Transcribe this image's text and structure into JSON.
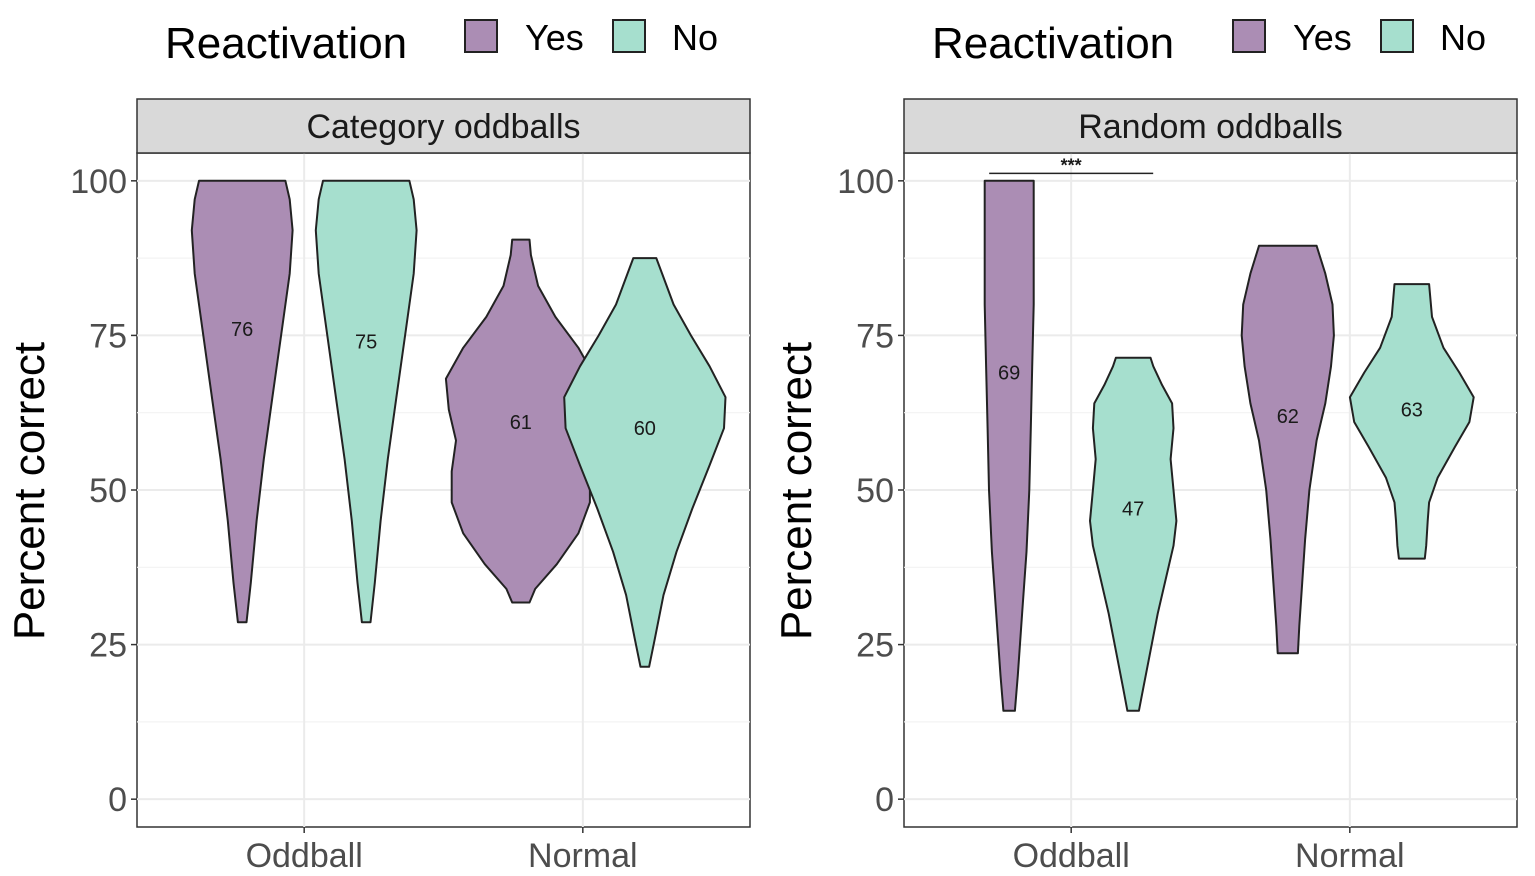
{
  "colors": {
    "yes": "#ab8db4",
    "no": "#a6dfce"
  },
  "legend": {
    "title": "Reactivation",
    "items": [
      {
        "label": "Yes",
        "key": "yes"
      },
      {
        "label": "No",
        "key": "no"
      }
    ]
  },
  "chart_data": [
    {
      "type": "violin",
      "title": "Category oddballs",
      "xlabel": "",
      "ylabel": "Percent correct",
      "ylim": [
        -4.5,
        104.5
      ],
      "yticks": [
        0,
        25,
        50,
        75,
        100
      ],
      "yticklabels": [
        "0",
        "25",
        "50",
        "75",
        "100"
      ],
      "categories": [
        "Oddball",
        "Normal"
      ],
      "significance": null,
      "violins": [
        {
          "category": "Oddball",
          "group": "yes",
          "label": "76",
          "label_y": 76,
          "profile": [
            [
              28.6,
              0.03
            ],
            [
              35,
              0.06
            ],
            [
              45,
              0.1
            ],
            [
              55,
              0.15
            ],
            [
              65,
              0.21
            ],
            [
              75,
              0.27
            ],
            [
              85,
              0.33
            ],
            [
              92,
              0.35
            ],
            [
              97,
              0.33
            ],
            [
              100,
              0.3
            ]
          ]
        },
        {
          "category": "Oddball",
          "group": "no",
          "label": "75",
          "label_y": 74,
          "profile": [
            [
              28.6,
              0.03
            ],
            [
              35,
              0.06
            ],
            [
              45,
              0.1
            ],
            [
              55,
              0.15
            ],
            [
              65,
              0.21
            ],
            [
              75,
              0.27
            ],
            [
              85,
              0.33
            ],
            [
              92,
              0.35
            ],
            [
              97,
              0.33
            ],
            [
              100,
              0.3
            ]
          ]
        },
        {
          "category": "Normal",
          "group": "yes",
          "label": "61",
          "label_y": 61,
          "profile": [
            [
              31.8,
              0.06
            ],
            [
              34,
              0.1
            ],
            [
              38,
              0.25
            ],
            [
              43,
              0.4
            ],
            [
              48,
              0.48
            ],
            [
              53,
              0.48
            ],
            [
              58,
              0.45
            ],
            [
              63,
              0.5
            ],
            [
              68,
              0.52
            ],
            [
              73,
              0.4
            ],
            [
              78,
              0.24
            ],
            [
              83,
              0.12
            ],
            [
              88,
              0.07
            ],
            [
              90.5,
              0.06
            ]
          ]
        },
        {
          "category": "Normal",
          "group": "no",
          "label": "60",
          "label_y": 60,
          "profile": [
            [
              21.4,
              0.03
            ],
            [
              26,
              0.07
            ],
            [
              33,
              0.13
            ],
            [
              40,
              0.22
            ],
            [
              47,
              0.33
            ],
            [
              54,
              0.45
            ],
            [
              60,
              0.55
            ],
            [
              65,
              0.56
            ],
            [
              70,
              0.45
            ],
            [
              75,
              0.32
            ],
            [
              80,
              0.2
            ],
            [
              85,
              0.12
            ],
            [
              87.5,
              0.08
            ]
          ]
        }
      ]
    },
    {
      "type": "violin",
      "title": "Random oddballs",
      "xlabel": "",
      "ylabel": "Percent correct",
      "ylim": [
        -4.5,
        104.5
      ],
      "yticks": [
        0,
        25,
        50,
        75,
        100
      ],
      "yticklabels": [
        "0",
        "25",
        "50",
        "75",
        "100"
      ],
      "categories": [
        "Oddball",
        "Normal"
      ],
      "significance": {
        "label": "***",
        "from": "Oddball-yes",
        "to": "Oddball-no",
        "y": 101.2
      },
      "violins": [
        {
          "category": "Oddball",
          "group": "yes",
          "label": "69",
          "label_y": 69,
          "profile": [
            [
              14.3,
              0.04
            ],
            [
              20,
              0.06
            ],
            [
              30,
              0.09
            ],
            [
              40,
              0.12
            ],
            [
              50,
              0.14
            ],
            [
              60,
              0.15
            ],
            [
              70,
              0.16
            ],
            [
              80,
              0.17
            ],
            [
              90,
              0.17
            ],
            [
              100,
              0.17
            ]
          ]
        },
        {
          "category": "Oddball",
          "group": "no",
          "label": "47",
          "label_y": 47,
          "profile": [
            [
              14.3,
              0.04
            ],
            [
              18,
              0.07
            ],
            [
              24,
              0.12
            ],
            [
              30,
              0.17
            ],
            [
              36,
              0.23
            ],
            [
              41,
              0.28
            ],
            [
              45,
              0.3
            ],
            [
              50,
              0.28
            ],
            [
              55,
              0.26
            ],
            [
              60,
              0.28
            ],
            [
              64,
              0.27
            ],
            [
              67,
              0.2
            ],
            [
              70,
              0.14
            ],
            [
              71.4,
              0.12
            ]
          ]
        },
        {
          "category": "Normal",
          "group": "yes",
          "label": "62",
          "label_y": 62,
          "profile": [
            [
              23.6,
              0.07
            ],
            [
              28,
              0.08
            ],
            [
              35,
              0.1
            ],
            [
              42,
              0.12
            ],
            [
              50,
              0.15
            ],
            [
              58,
              0.2
            ],
            [
              64,
              0.26
            ],
            [
              70,
              0.3
            ],
            [
              75,
              0.32
            ],
            [
              80,
              0.31
            ],
            [
              85,
              0.26
            ],
            [
              89.5,
              0.2
            ]
          ]
        },
        {
          "category": "Normal",
          "group": "no",
          "label": "63",
          "label_y": 63,
          "profile": [
            [
              38.9,
              0.09
            ],
            [
              41,
              0.1
            ],
            [
              45,
              0.11
            ],
            [
              48,
              0.12
            ],
            [
              52,
              0.18
            ],
            [
              57,
              0.3
            ],
            [
              61,
              0.4
            ],
            [
              65,
              0.43
            ],
            [
              69,
              0.33
            ],
            [
              73,
              0.22
            ],
            [
              78,
              0.14
            ],
            [
              83.3,
              0.12
            ]
          ]
        }
      ]
    }
  ]
}
